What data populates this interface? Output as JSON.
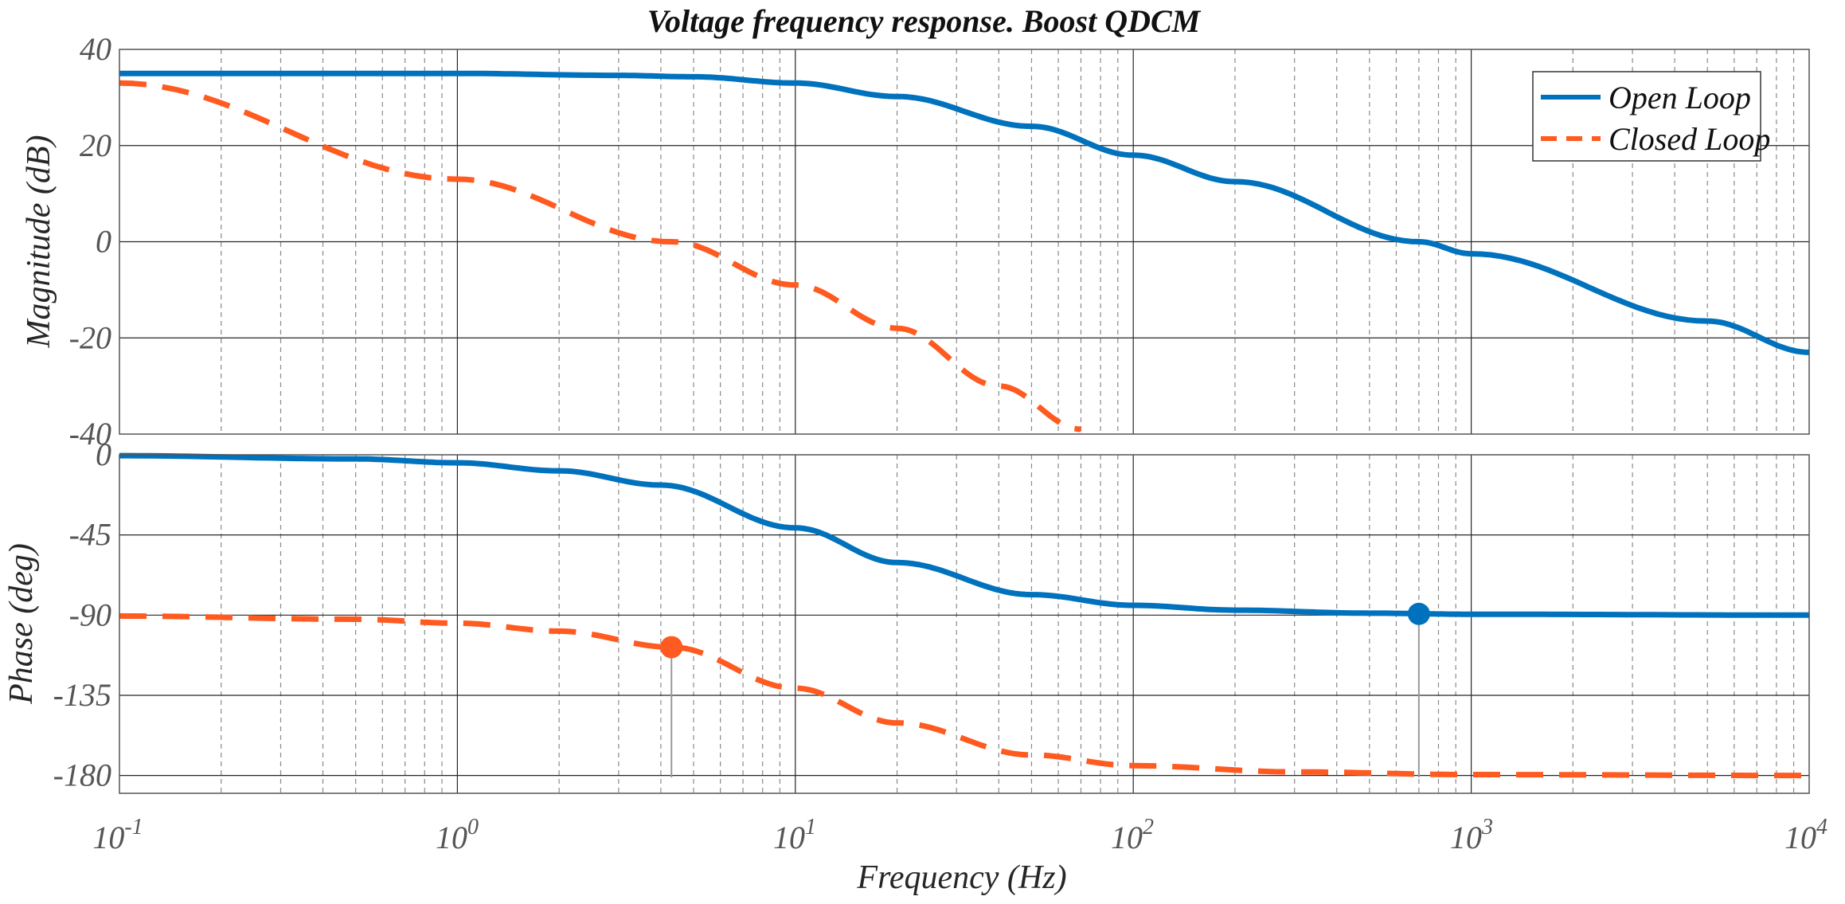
{
  "chart_data": {
    "type": "line",
    "title": "Voltage frequency response. Boost QDCM",
    "xlabel": "Frequency  (Hz)",
    "xscale": "log",
    "xlim": [
      0.1,
      10000
    ],
    "xticks": [
      {
        "base": "10",
        "exp": "-1"
      },
      {
        "base": "10",
        "exp": "0"
      },
      {
        "base": "10",
        "exp": "1"
      },
      {
        "base": "10",
        "exp": "2"
      },
      {
        "base": "10",
        "exp": "3"
      },
      {
        "base": "10",
        "exp": "4"
      }
    ],
    "legend": {
      "placement": "top-right",
      "entries": [
        "Open Loop",
        "Closed Loop"
      ]
    },
    "colors": {
      "open_loop": "#0072BD",
      "closed_loop": "#FF5A1F"
    },
    "magnitude": {
      "ylabel": "Magnitude (dB)",
      "ylim": [
        -40,
        40
      ],
      "yticks": [
        "40",
        "20",
        "0",
        "-20",
        "-40"
      ],
      "series": [
        {
          "name": "Open Loop",
          "style": "solid",
          "x": [
            0.1,
            1,
            3,
            5,
            10,
            20,
            50,
            100,
            200,
            700,
            1000,
            5000,
            10000
          ],
          "values": [
            35,
            35,
            34.6,
            34.3,
            33,
            30.2,
            24,
            18,
            12.5,
            0,
            -2.5,
            -16.5,
            -23
          ]
        },
        {
          "name": "Closed Loop",
          "style": "dashed",
          "x": [
            0.1,
            1,
            4.3,
            10,
            20,
            40,
            70
          ],
          "values": [
            33,
            13,
            0,
            -9,
            -18,
            -30,
            -39
          ]
        }
      ]
    },
    "phase": {
      "ylabel": "Phase (deg)",
      "ylim": [
        -190,
        0
      ],
      "yticks": [
        "0",
        "-45",
        "-90",
        "-135",
        "-180"
      ],
      "series": [
        {
          "name": "Open Loop",
          "style": "solid",
          "x": [
            0.1,
            0.5,
            1,
            2,
            4,
            10,
            20,
            50,
            100,
            200,
            500,
            1000,
            10000
          ],
          "values": [
            -0.5,
            -2.3,
            -4.5,
            -9,
            -17,
            -41,
            -60.5,
            -78.5,
            -84.5,
            -87.2,
            -88.9,
            -89.5,
            -90
          ]
        },
        {
          "name": "Closed Loop",
          "style": "dashed",
          "x": [
            0.1,
            0.5,
            1,
            2,
            4.3,
            10,
            20,
            50,
            100,
            300,
            1000,
            10000
          ],
          "values": [
            -90.5,
            -92.3,
            -94.5,
            -99,
            -108,
            -131,
            -150.5,
            -168.5,
            -174.5,
            -178,
            -179.5,
            -180
          ]
        }
      ],
      "markers": [
        {
          "series": "Closed Loop",
          "x": 4.3,
          "y": -108
        },
        {
          "series": "Open Loop",
          "x": 700,
          "y": -89.3
        }
      ]
    }
  }
}
